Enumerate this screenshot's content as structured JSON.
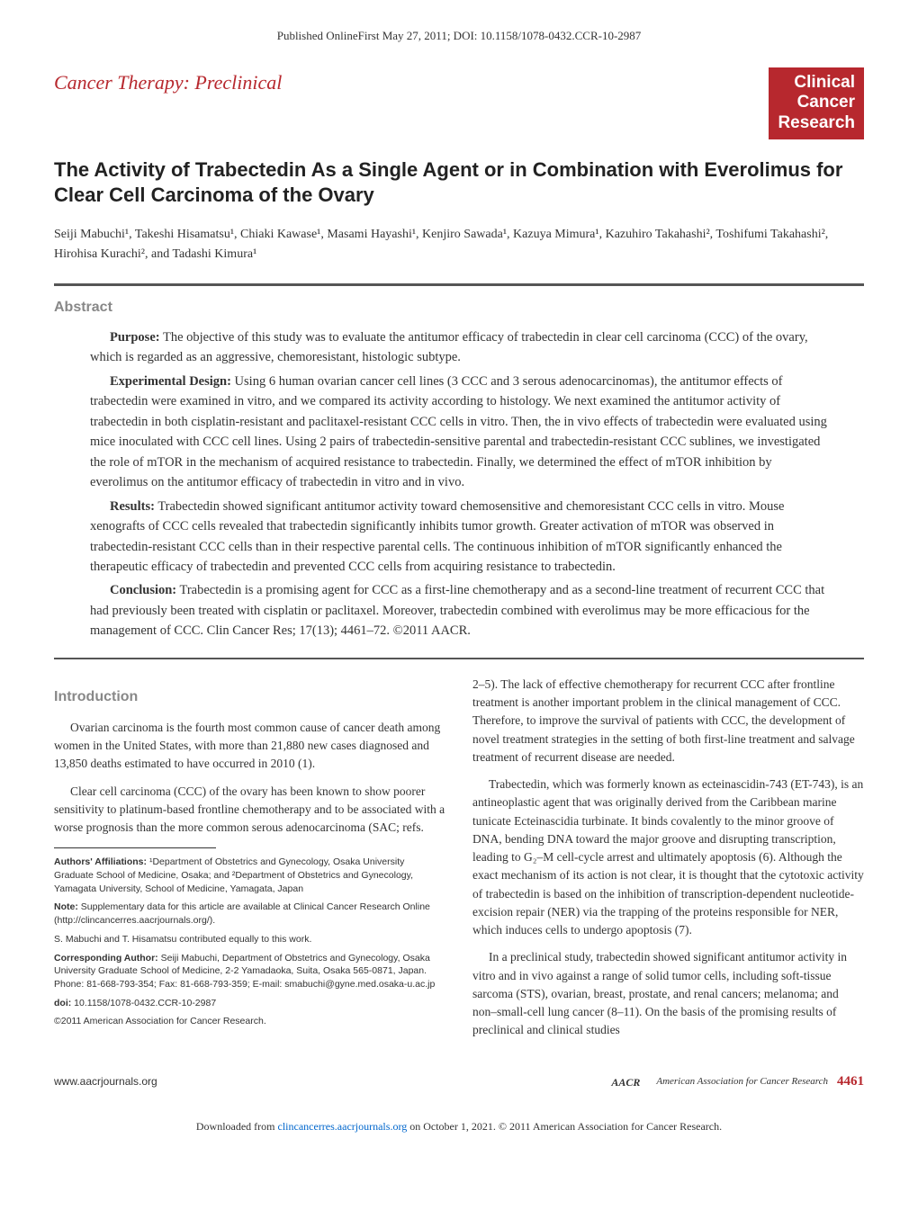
{
  "banner": "Published OnlineFirst May 27, 2011; DOI: 10.1158/1078-0432.CCR-10-2987",
  "category": "Cancer Therapy: Preclinical",
  "journal": {
    "line1": "Clinical",
    "line2": "Cancer",
    "line3": "Research"
  },
  "title": "The Activity of Trabectedin As a Single Agent or in Combination with Everolimus for Clear Cell Carcinoma of the Ovary",
  "authors": "Seiji Mabuchi¹, Takeshi Hisamatsu¹, Chiaki Kawase¹, Masami Hayashi¹, Kenjiro Sawada¹, Kazuya Mimura¹, Kazuhiro Takahashi², Toshifumi Takahashi², Hirohisa Kurachi², and Tadashi Kimura¹",
  "abstract": {
    "label": "Abstract",
    "purpose_label": "Purpose:",
    "purpose": " The objective of this study was to evaluate the antitumor efficacy of trabectedin in clear cell carcinoma (CCC) of the ovary, which is regarded as an aggressive, chemoresistant, histologic subtype.",
    "design_label": "Experimental Design:",
    "design": " Using 6 human ovarian cancer cell lines (3 CCC and 3 serous adenocarcinomas), the antitumor effects of trabectedin were examined in vitro, and we compared its activity according to histology. We next examined the antitumor activity of trabectedin in both cisplatin-resistant and paclitaxel-resistant CCC cells in vitro. Then, the in vivo effects of trabectedin were evaluated using mice inoculated with CCC cell lines. Using 2 pairs of trabectedin-sensitive parental and trabectedin-resistant CCC sublines, we investigated the role of mTOR in the mechanism of acquired resistance to trabectedin. Finally, we determined the effect of mTOR inhibition by everolimus on the antitumor efficacy of trabectedin in vitro and in vivo.",
    "results_label": "Results:",
    "results": " Trabectedin showed significant antitumor activity toward chemosensitive and chemoresistant CCC cells in vitro. Mouse xenografts of CCC cells revealed that trabectedin significantly inhibits tumor growth. Greater activation of mTOR was observed in trabectedin-resistant CCC cells than in their respective parental cells. The continuous inhibition of mTOR significantly enhanced the therapeutic efficacy of trabectedin and prevented CCC cells from acquiring resistance to trabectedin.",
    "conclusion_label": "Conclusion:",
    "conclusion": " Trabectedin is a promising agent for CCC as a first-line chemotherapy and as a second-line treatment of recurrent CCC that had previously been treated with cisplatin or paclitaxel. Moreover, trabectedin combined with everolimus may be more efficacious for the management of CCC. Clin Cancer Res; 17(13); 4461–72. ©2011 AACR."
  },
  "introduction": {
    "label": "Introduction",
    "left": {
      "p1": "Ovarian carcinoma is the fourth most common cause of cancer death among women in the United States, with more than 21,880 new cases diagnosed and 13,850 deaths estimated to have occurred in 2010 (1).",
      "p2": "Clear cell carcinoma (CCC) of the ovary has been known to show poorer sensitivity to platinum-based frontline chemotherapy and to be associated with a worse prognosis than the more common serous adenocarcinoma (SAC; refs."
    },
    "right": {
      "p1": "2–5). The lack of effective chemotherapy for recurrent CCC after frontline treatment is another important problem in the clinical management of CCC. Therefore, to improve the survival of patients with CCC, the development of novel treatment strategies in the setting of both first-line treatment and salvage treatment of recurrent disease are needed.",
      "p2": "Trabectedin, which was formerly known as ecteinascidin-743 (ET-743), is an antineoplastic agent that was originally derived from the Caribbean marine tunicate Ecteinascidia turbinate. It binds covalently to the minor groove of DNA, bending DNA toward the major groove and disrupting transcription, leading to G₂–M cell-cycle arrest and ultimately apoptosis (6). Although the exact mechanism of its action is not clear, it is thought that the cytotoxic activity of trabectedin is based on the inhibition of transcription-dependent nucleotide-excision repair (NER) via the trapping of the proteins responsible for NER, which induces cells to undergo apoptosis (7).",
      "p3": "In a preclinical study, trabectedin showed significant antitumor activity in vitro and in vivo against a range of solid tumor cells, including soft-tissue sarcoma (STS), ovarian, breast, prostate, and renal cancers; melanoma; and non–small-cell lung cancer (8–11). On the basis of the promising results of preclinical and clinical studies"
    }
  },
  "footnotes": {
    "affiliations_label": "Authors' Affiliations:",
    "affiliations": " ¹Department of Obstetrics and Gynecology, Osaka University Graduate School of Medicine, Osaka; and ²Department of Obstetrics and Gynecology, Yamagata University, School of Medicine, Yamagata, Japan",
    "note_label": "Note:",
    "note": " Supplementary data for this article are available at Clinical Cancer Research Online (http://clincancerres.aacrjournals.org/).",
    "contrib": "S. Mabuchi and T. Hisamatsu contributed equally to this work.",
    "corr_label": "Corresponding Author:",
    "corr": " Seiji Mabuchi, Department of Obstetrics and Gynecology, Osaka University Graduate School of Medicine, 2-2 Yamadaoka, Suita, Osaka 565-0871, Japan. Phone: 81-668-793-354; Fax: 81-668-793-359; E-mail: smabuchi@gyne.med.osaka-u.ac.jp",
    "doi_label": "doi:",
    "doi": " 10.1158/1078-0432.CCR-10-2987",
    "copyright": "©2011 American Association for Cancer Research."
  },
  "footer": {
    "url": "www.aacrjournals.org",
    "aacr_icon": "AACR",
    "aacr": "American Association for Cancer Research",
    "page": "4461"
  },
  "download": {
    "pre": "Downloaded from ",
    "link": "clincancerres.aacrjournals.org",
    "post": " on October 1, 2021. © 2011 American Association for Cancer Research."
  }
}
